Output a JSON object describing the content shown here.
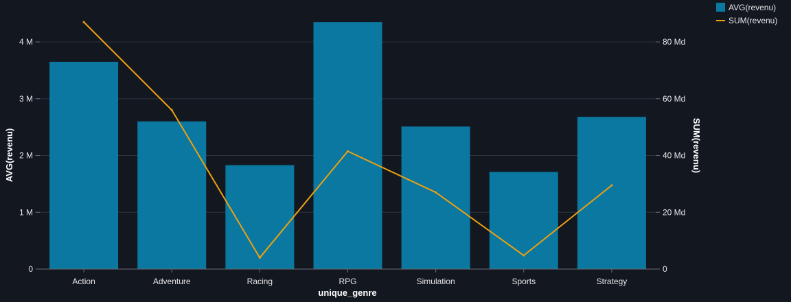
{
  "chart_data": {
    "type": "bar+line",
    "categories": [
      "Action",
      "Adventure",
      "Racing",
      "RPG",
      "Simulation",
      "Sports",
      "Strategy"
    ],
    "series": [
      {
        "name": "AVG(revenu)",
        "type": "bar",
        "axis": "left",
        "color": "#0a78a0",
        "values": [
          3650000,
          2600000,
          1830000,
          4350000,
          2510000,
          1710000,
          2680000
        ]
      },
      {
        "name": "SUM(revenu)",
        "type": "line",
        "axis": "right",
        "color": "#f0a10f",
        "values": [
          87000000000,
          56000000000,
          4000000000,
          41500000000,
          27000000000,
          4800000000,
          29500000000
        ]
      }
    ],
    "xlabel": "unique_genre",
    "ylabel_left": "AVG(revenu)",
    "ylabel_right": "SUM(revenu)",
    "ylim_left": [
      0,
      4400000
    ],
    "ylim_right": [
      0,
      88000000000
    ],
    "yticks_left": [
      {
        "value": 0,
        "label": "0"
      },
      {
        "value": 1000000,
        "label": "1 M"
      },
      {
        "value": 2000000,
        "label": "2 M"
      },
      {
        "value": 3000000,
        "label": "3 M"
      },
      {
        "value": 4000000,
        "label": "4 M"
      }
    ],
    "yticks_right": [
      {
        "value": 0,
        "label": "0"
      },
      {
        "value": 20000000000,
        "label": "20 Md"
      },
      {
        "value": 40000000000,
        "label": "40 Md"
      },
      {
        "value": 60000000000,
        "label": "60 Md"
      },
      {
        "value": 80000000000,
        "label": "80 Md"
      }
    ],
    "grid": true,
    "legend_position": "top-right",
    "background": "#131720"
  }
}
